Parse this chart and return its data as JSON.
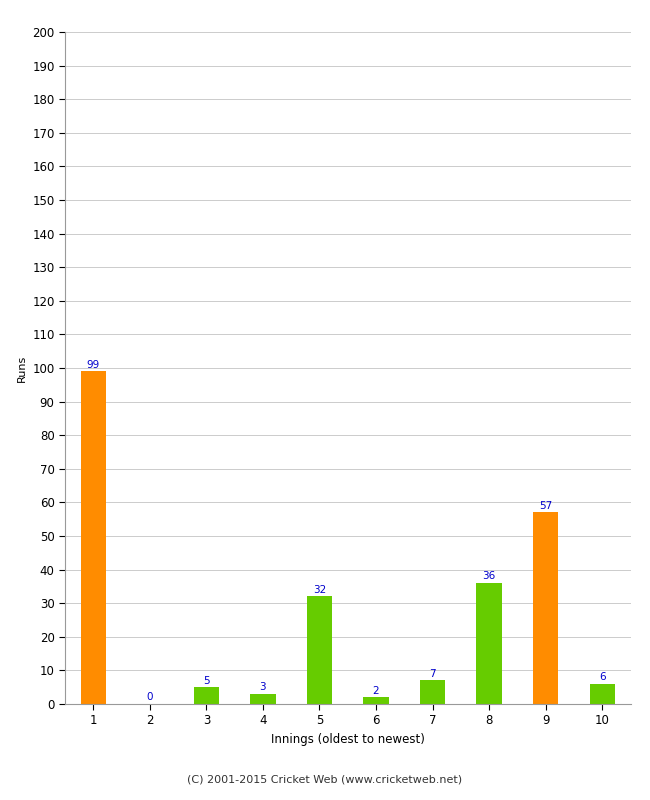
{
  "categories": [
    1,
    2,
    3,
    4,
    5,
    6,
    7,
    8,
    9,
    10
  ],
  "values": [
    99,
    0,
    5,
    3,
    32,
    2,
    7,
    36,
    57,
    6
  ],
  "bar_colors": [
    "#FF8C00",
    "#66CC00",
    "#66CC00",
    "#66CC00",
    "#66CC00",
    "#66CC00",
    "#66CC00",
    "#66CC00",
    "#FF8C00",
    "#66CC00"
  ],
  "xlabel": "Innings (oldest to newest)",
  "ylabel": "Runs",
  "ylim": [
    0,
    200
  ],
  "yticks": [
    0,
    10,
    20,
    30,
    40,
    50,
    60,
    70,
    80,
    90,
    100,
    110,
    120,
    130,
    140,
    150,
    160,
    170,
    180,
    190,
    200
  ],
  "label_color": "#0000CC",
  "label_fontsize": 7.5,
  "axis_fontsize": 8.5,
  "tick_fontsize": 8.5,
  "ylabel_fontsize": 8,
  "footer": "(C) 2001-2015 Cricket Web (www.cricketweb.net)",
  "footer_fontsize": 8,
  "background_color": "#FFFFFF",
  "grid_color": "#CCCCCC",
  "bar_width": 0.45
}
